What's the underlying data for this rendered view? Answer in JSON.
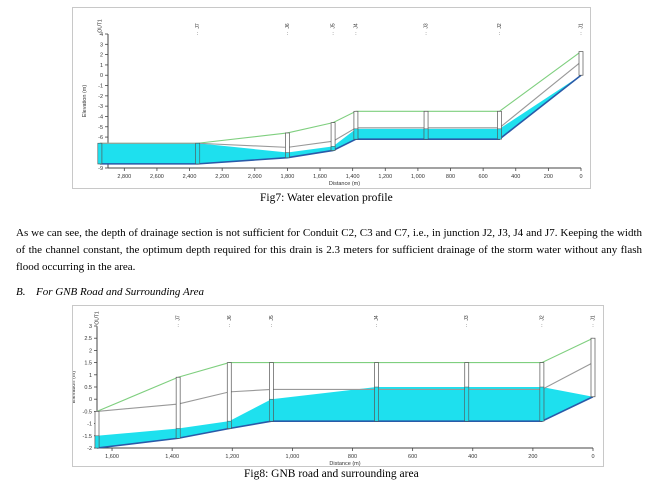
{
  "fig7": {
    "caption": "Fig7: Water elevation profile",
    "chart_data": {
      "type": "line",
      "title": "",
      "xlabel": "Distance (m)",
      "ylabel": "Elevation (m)",
      "x_ticks": [
        "2,800",
        "2,600",
        "2,400",
        "2,200",
        "2,000",
        "1,800",
        "1,600",
        "1,400",
        "1,200",
        "1,000",
        "800",
        "600",
        "400",
        "200",
        "0"
      ],
      "y_ticks": [
        "4",
        "3",
        "2",
        "1",
        "0",
        "-1",
        "-2",
        "-3",
        "-4",
        "-5",
        "-6",
        "-7",
        "-8",
        "-9"
      ],
      "xlim": [
        2900,
        0
      ],
      "ylim": [
        -9,
        4
      ],
      "nodes": [
        "OUT1",
        "J7",
        "J6",
        "J5",
        "J4",
        "J3",
        "J2",
        "J1"
      ],
      "node_x": [
        2950,
        2350,
        1800,
        1520,
        1380,
        950,
        500,
        0
      ],
      "series": [
        {
          "name": "",
          "color": "#7fcf7f",
          "x": [
            2950,
            2350,
            1800,
            1520,
            1380,
            950,
            500,
            0
          ],
          "values": [
            -6.6,
            -6.6,
            -5.6,
            -4.6,
            -3.5,
            -3.5,
            -3.5,
            2.3
          ]
        },
        {
          "name": "",
          "color": "#999999",
          "x": [
            2950,
            2350,
            1800,
            1520,
            1380,
            950,
            500,
            0
          ],
          "values": [
            -6.6,
            -6.6,
            -7.0,
            -6.4,
            -5.1,
            -5.1,
            -5.1,
            1.3
          ]
        },
        {
          "name": "",
          "color": "#2a5aa8",
          "x": [
            2950,
            2350,
            1800,
            1520,
            1380,
            950,
            500,
            0
          ],
          "values": [
            -8.6,
            -8.6,
            -8.0,
            -7.3,
            -6.2,
            -6.2,
            -6.2,
            0.0
          ]
        }
      ],
      "water": {
        "x": [
          2950,
          2350,
          1800,
          1520,
          1380,
          950,
          500,
          0
        ],
        "values": [
          -6.6,
          -6.6,
          -7.5,
          -6.9,
          -5.2,
          -5.2,
          -5.2,
          0.0
        ]
      },
      "grid": false,
      "legend": "none"
    }
  },
  "paragraph": "As we can see, the depth of drainage section is not sufficient for Conduit C2, C3 and C7, i.e., in junction J2, J3, J4 and J7. Keeping the width of the channel constant, the optimum depth required for this drain is 2.3 meters for sufficient drainage of the storm water without any flash flood occurring in the area.",
  "section": {
    "number": "B.",
    "title": "For GNB Road and Surrounding Area"
  },
  "fig8": {
    "caption": "Fig8: GNB road and surrounding area",
    "chart_data": {
      "type": "line",
      "title": "",
      "xlabel": "Distance (m)",
      "ylabel": "Elevation (m)",
      "x_ticks": [
        "1,600",
        "1,400",
        "1,200",
        "1,000",
        "800",
        "600",
        "400",
        "200",
        "0"
      ],
      "y_ticks": [
        "3",
        "2.5",
        "2",
        "1.5",
        "1",
        "0.5",
        "0",
        "-0.5",
        "-1",
        "-1.5",
        "-2"
      ],
      "xlim": [
        1650,
        0
      ],
      "ylim": [
        -2,
        3
      ],
      "nodes": [
        "OUT1",
        "J7",
        "J6",
        "J5",
        "J4",
        "J3",
        "J2",
        "J1"
      ],
      "node_x": [
        1650,
        1380,
        1210,
        1070,
        720,
        420,
        170,
        0
      ],
      "series": [
        {
          "name": "",
          "color": "#7fcf7f",
          "x": [
            1650,
            1380,
            1210,
            1070,
            720,
            420,
            170,
            0
          ],
          "values": [
            -0.5,
            0.9,
            1.5,
            1.5,
            1.5,
            1.5,
            1.5,
            2.5
          ]
        },
        {
          "name": "",
          "color": "#999999",
          "x": [
            1650,
            1380,
            1210,
            1070,
            720,
            420,
            170,
            0
          ],
          "values": [
            -0.5,
            -0.2,
            0.3,
            0.4,
            0.4,
            0.4,
            0.4,
            1.5
          ]
        },
        {
          "name": "",
          "color": "#2a5aa8",
          "x": [
            1650,
            1380,
            1210,
            1070,
            720,
            420,
            170,
            0
          ],
          "values": [
            -2.0,
            -1.6,
            -1.2,
            -0.9,
            -0.9,
            -0.9,
            -0.9,
            0.1
          ]
        }
      ],
      "water": {
        "x": [
          1650,
          1380,
          1210,
          1070,
          720,
          420,
          170,
          0
        ],
        "values": [
          -1.5,
          -1.2,
          -0.9,
          0.0,
          0.5,
          0.5,
          0.5,
          0.1
        ]
      },
      "grid": false,
      "legend": "none"
    }
  }
}
